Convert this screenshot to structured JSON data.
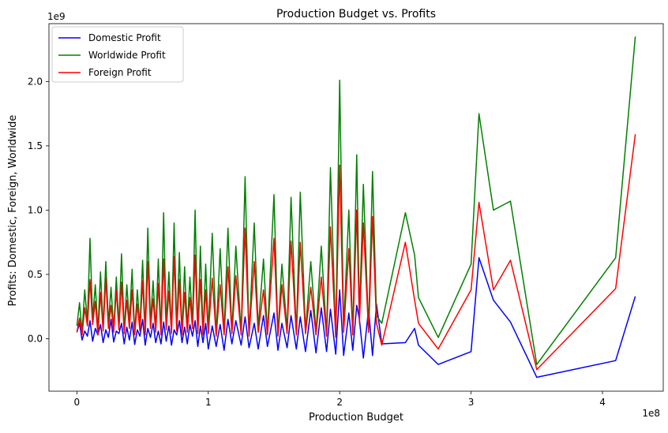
{
  "chart_data": {
    "type": "line",
    "title": "Production Budget vs. Profits",
    "xlabel": "Production Budget",
    "ylabel": "Profits: Domestic, Foreign, Worldwide",
    "x_offset_label": "1e8",
    "y_offset_label": "1e9",
    "xlim": [
      -21250000,
      446250000
    ],
    "ylim": [
      -408000000,
      2450000000
    ],
    "x_ticks": [
      0,
      100000000,
      200000000,
      300000000,
      400000000
    ],
    "x_tick_labels": [
      "0",
      "1",
      "2",
      "3",
      "4"
    ],
    "y_ticks": [
      0,
      500000000,
      1000000000,
      1500000000,
      2000000000
    ],
    "y_tick_labels": [
      "0.0",
      "0.5",
      "1.0",
      "1.5",
      "2.0"
    ],
    "legend_position": "top-left",
    "grid": false,
    "x": [
      0,
      2000000,
      4000000,
      6000000,
      8000000,
      10000000,
      12000000,
      14000000,
      16000000,
      18000000,
      20000000,
      22000000,
      24000000,
      26000000,
      28000000,
      30000000,
      32000000,
      34000000,
      36000000,
      38000000,
      40000000,
      42000000,
      44000000,
      46000000,
      48000000,
      50000000,
      52000000,
      54000000,
      56000000,
      58000000,
      60000000,
      62000000,
      64000000,
      66000000,
      68000000,
      70000000,
      72000000,
      74000000,
      76000000,
      78000000,
      80000000,
      82000000,
      84000000,
      86000000,
      88000000,
      90000000,
      92000000,
      94000000,
      96000000,
      98000000,
      100000000,
      103000000,
      106000000,
      109000000,
      112000000,
      115000000,
      118000000,
      121000000,
      125000000,
      128000000,
      131000000,
      135000000,
      138000000,
      142000000,
      145000000,
      150000000,
      153000000,
      156000000,
      160000000,
      163000000,
      167000000,
      170000000,
      174000000,
      178000000,
      182000000,
      186000000,
      190000000,
      193000000,
      197000000,
      200000000,
      203000000,
      207000000,
      210000000,
      213000000,
      215000000,
      218000000,
      222000000,
      225000000,
      228000000,
      232000000,
      250000000,
      257000000,
      260000000,
      275000000,
      300000000,
      306000000,
      317000000,
      330000000,
      350000000,
      410000000,
      425000000
    ],
    "series": [
      {
        "name": "Domestic Profit",
        "color": "#0000ff",
        "values": [
          50000000,
          120000000,
          -10000000,
          60000000,
          20000000,
          140000000,
          -20000000,
          80000000,
          30000000,
          110000000,
          -30000000,
          70000000,
          10000000,
          150000000,
          -25000000,
          60000000,
          40000000,
          120000000,
          -40000000,
          90000000,
          -10000000,
          130000000,
          -45000000,
          70000000,
          20000000,
          150000000,
          -50000000,
          80000000,
          10000000,
          120000000,
          -30000000,
          60000000,
          -40000000,
          130000000,
          -20000000,
          100000000,
          -50000000,
          70000000,
          30000000,
          140000000,
          -30000000,
          90000000,
          -40000000,
          110000000,
          20000000,
          140000000,
          -60000000,
          100000000,
          -30000000,
          120000000,
          -80000000,
          100000000,
          -60000000,
          110000000,
          -90000000,
          150000000,
          -40000000,
          140000000,
          -50000000,
          170000000,
          -70000000,
          120000000,
          -80000000,
          180000000,
          -60000000,
          200000000,
          -90000000,
          120000000,
          -70000000,
          180000000,
          -80000000,
          170000000,
          -100000000,
          220000000,
          -110000000,
          240000000,
          -100000000,
          230000000,
          -120000000,
          380000000,
          -130000000,
          200000000,
          -90000000,
          260000000,
          150000000,
          -150000000,
          230000000,
          -130000000,
          270000000,
          -40000000,
          -30000000,
          80000000,
          -50000000,
          -200000000,
          -100000000,
          630000000,
          300000000,
          130000000,
          -300000000,
          -170000000,
          330000000
        ]
      },
      {
        "name": "Worldwide Profit",
        "color": "#008000",
        "values": [
          100000000,
          280000000,
          50000000,
          380000000,
          130000000,
          780000000,
          150000000,
          420000000,
          60000000,
          520000000,
          90000000,
          600000000,
          120000000,
          400000000,
          70000000,
          480000000,
          100000000,
          660000000,
          60000000,
          420000000,
          130000000,
          540000000,
          40000000,
          380000000,
          90000000,
          610000000,
          50000000,
          860000000,
          120000000,
          450000000,
          70000000,
          620000000,
          40000000,
          980000000,
          110000000,
          520000000,
          60000000,
          900000000,
          90000000,
          670000000,
          40000000,
          560000000,
          80000000,
          480000000,
          120000000,
          1000000000,
          50000000,
          720000000,
          40000000,
          580000000,
          60000000,
          820000000,
          30000000,
          700000000,
          40000000,
          860000000,
          50000000,
          720000000,
          40000000,
          1260000000,
          30000000,
          900000000,
          80000000,
          620000000,
          40000000,
          1120000000,
          30000000,
          580000000,
          70000000,
          1100000000,
          40000000,
          1140000000,
          60000000,
          600000000,
          50000000,
          720000000,
          30000000,
          1330000000,
          20000000,
          2010000000,
          80000000,
          1000000000,
          40000000,
          1430000000,
          180000000,
          1200000000,
          70000000,
          1300000000,
          180000000,
          120000000,
          980000000,
          650000000,
          320000000,
          10000000,
          580000000,
          1750000000,
          1000000000,
          1070000000,
          -200000000,
          630000000,
          2350000000
        ]
      },
      {
        "name": "Foreign Profit",
        "color": "#ff0000",
        "values": [
          50000000,
          160000000,
          30000000,
          240000000,
          100000000,
          460000000,
          110000000,
          290000000,
          30000000,
          360000000,
          60000000,
          470000000,
          80000000,
          260000000,
          50000000,
          380000000,
          70000000,
          440000000,
          40000000,
          300000000,
          80000000,
          380000000,
          30000000,
          270000000,
          60000000,
          450000000,
          30000000,
          600000000,
          80000000,
          310000000,
          50000000,
          430000000,
          30000000,
          620000000,
          70000000,
          370000000,
          40000000,
          640000000,
          60000000,
          460000000,
          30000000,
          360000000,
          50000000,
          320000000,
          80000000,
          650000000,
          40000000,
          460000000,
          30000000,
          380000000,
          40000000,
          470000000,
          20000000,
          420000000,
          30000000,
          560000000,
          40000000,
          490000000,
          30000000,
          860000000,
          20000000,
          600000000,
          50000000,
          380000000,
          30000000,
          780000000,
          20000000,
          420000000,
          40000000,
          760000000,
          30000000,
          750000000,
          40000000,
          400000000,
          30000000,
          480000000,
          20000000,
          870000000,
          10000000,
          1350000000,
          50000000,
          700000000,
          30000000,
          1000000000,
          120000000,
          900000000,
          50000000,
          950000000,
          120000000,
          -50000000,
          750000000,
          300000000,
          120000000,
          -80000000,
          380000000,
          1060000000,
          380000000,
          610000000,
          -240000000,
          390000000,
          1590000000
        ]
      }
    ]
  }
}
